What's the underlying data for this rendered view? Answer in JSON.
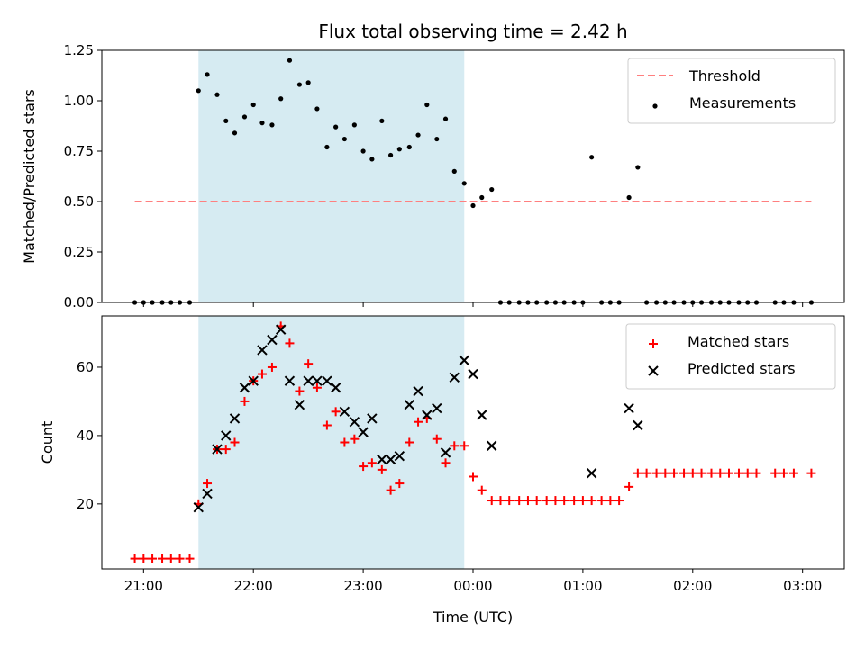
{
  "chart_data": {
    "title": "Flux total observing time = 2.42 h",
    "xlabel": "Time (UTC)",
    "x_ticks": [
      "21:00",
      "22:00",
      "23:00",
      "00:00",
      "01:00",
      "02:00",
      "03:00"
    ],
    "x_tick_values": [
      21.0,
      22.0,
      23.0,
      24.0,
      25.0,
      26.0,
      27.0
    ],
    "xlim": [
      20.62,
      27.38
    ],
    "shaded_region": {
      "x": [
        21.5,
        23.92
      ],
      "color": "#add8e6"
    },
    "panels": [
      {
        "type": "scatter",
        "ylabel": "Matched/Predicted stars",
        "ylim": [
          0,
          1.25
        ],
        "y_ticks": [
          "0.00",
          "0.25",
          "0.50",
          "0.75",
          "1.00",
          "1.25"
        ],
        "y_tick_values": [
          0,
          0.25,
          0.5,
          0.75,
          1.0,
          1.25
        ],
        "legend_position": "top-right",
        "threshold": {
          "name": "Threshold",
          "y": 0.5,
          "x": [
            20.92,
            27.08
          ],
          "color": "#ff7f7f"
        },
        "series": [
          {
            "name": "Measurements",
            "color": "#000000",
            "marker": "dot",
            "x": [
              20.92,
              21.0,
              21.08,
              21.17,
              21.25,
              21.33,
              21.42,
              21.5,
              21.58,
              21.67,
              21.75,
              21.83,
              21.92,
              22.0,
              22.08,
              22.17,
              22.25,
              22.33,
              22.42,
              22.5,
              22.58,
              22.67,
              22.75,
              22.83,
              22.92,
              23.0,
              23.08,
              23.17,
              23.25,
              23.33,
              23.42,
              23.5,
              23.58,
              23.67,
              23.75,
              23.83,
              23.92,
              24.0,
              24.08,
              24.17,
              24.25,
              24.33,
              24.42,
              24.5,
              24.58,
              24.67,
              24.75,
              24.83,
              24.92,
              25.0,
              25.08,
              25.17,
              25.25,
              25.33,
              25.42,
              25.5,
              25.58,
              25.67,
              25.75,
              25.83,
              25.92,
              26.0,
              26.08,
              26.17,
              26.25,
              26.33,
              26.42,
              26.5,
              26.58,
              26.75,
              26.83,
              26.92,
              27.08
            ],
            "y": [
              0,
              0,
              0,
              0,
              0,
              0,
              0,
              1.05,
              1.13,
              1.03,
              0.9,
              0.84,
              0.92,
              0.98,
              0.89,
              0.88,
              1.01,
              1.2,
              1.08,
              1.09,
              0.96,
              0.77,
              0.87,
              0.81,
              0.88,
              0.75,
              0.71,
              0.9,
              0.73,
              0.76,
              0.77,
              0.83,
              0.98,
              0.81,
              0.91,
              0.65,
              0.59,
              0.48,
              0.52,
              0.56,
              0,
              0,
              0,
              0,
              0,
              0,
              0,
              0,
              0,
              0,
              0.72,
              0,
              0,
              0,
              0.52,
              0.67,
              0,
              0,
              0,
              0,
              0,
              0,
              0,
              0,
              0,
              0,
              0,
              0,
              0,
              0,
              0,
              0,
              0
            ]
          }
        ]
      },
      {
        "type": "scatter",
        "ylabel": "Count",
        "ylim": [
          1,
          75
        ],
        "y_ticks": [
          "20",
          "40",
          "60"
        ],
        "y_tick_values": [
          20,
          40,
          60
        ],
        "legend_position": "top-right",
        "series": [
          {
            "name": "Matched stars",
            "color": "#ff0000",
            "marker": "plus",
            "x": [
              20.92,
              21.0,
              21.08,
              21.17,
              21.25,
              21.33,
              21.42,
              21.5,
              21.58,
              21.67,
              21.75,
              21.83,
              21.92,
              22.0,
              22.08,
              22.17,
              22.25,
              22.33,
              22.42,
              22.5,
              22.58,
              22.67,
              22.75,
              22.83,
              22.92,
              23.0,
              23.08,
              23.17,
              23.25,
              23.33,
              23.42,
              23.5,
              23.58,
              23.67,
              23.75,
              23.83,
              23.92,
              24.0,
              24.08,
              24.17,
              24.25,
              24.33,
              24.42,
              24.5,
              24.58,
              24.67,
              24.75,
              24.83,
              24.92,
              25.0,
              25.08,
              25.17,
              25.25,
              25.33,
              25.42,
              25.5,
              25.58,
              25.67,
              25.75,
              25.83,
              25.92,
              26.0,
              26.08,
              26.17,
              26.25,
              26.33,
              26.42,
              26.5,
              26.58,
              26.75,
              26.83,
              26.92,
              27.08
            ],
            "y": [
              4,
              4,
              4,
              4,
              4,
              4,
              4,
              20,
              26,
              36,
              36,
              38,
              50,
              56,
              58,
              60,
              72,
              67,
              53,
              61,
              54,
              43,
              47,
              38,
              39,
              31,
              32,
              30,
              24,
              26,
              38,
              44,
              45,
              39,
              32,
              37,
              37,
              28,
              24,
              21,
              21,
              21,
              21,
              21,
              21,
              21,
              21,
              21,
              21,
              21,
              21,
              21,
              21,
              21,
              25,
              29,
              29,
              29,
              29,
              29,
              29,
              29,
              29,
              29,
              29,
              29,
              29,
              29,
              29,
              29,
              29,
              29,
              29
            ]
          },
          {
            "name": "Predicted stars",
            "color": "#000000",
            "marker": "x",
            "x": [
              21.5,
              21.58,
              21.67,
              21.75,
              21.83,
              21.92,
              22.0,
              22.08,
              22.17,
              22.25,
              22.33,
              22.42,
              22.5,
              22.58,
              22.67,
              22.75,
              22.83,
              22.92,
              23.0,
              23.08,
              23.17,
              23.25,
              23.33,
              23.42,
              23.5,
              23.58,
              23.67,
              23.75,
              23.83,
              23.92,
              24.0,
              24.08,
              24.17,
              25.08,
              25.42,
              25.5
            ],
            "y": [
              19,
              23,
              36,
              40,
              45,
              54,
              56,
              65,
              68,
              71,
              56,
              49,
              56,
              56,
              56,
              54,
              47,
              44,
              41,
              45,
              33,
              33,
              34,
              49,
              53,
              46,
              48,
              35,
              57,
              62,
              58,
              46,
              37,
              29,
              48,
              43
            ]
          }
        ]
      }
    ]
  }
}
